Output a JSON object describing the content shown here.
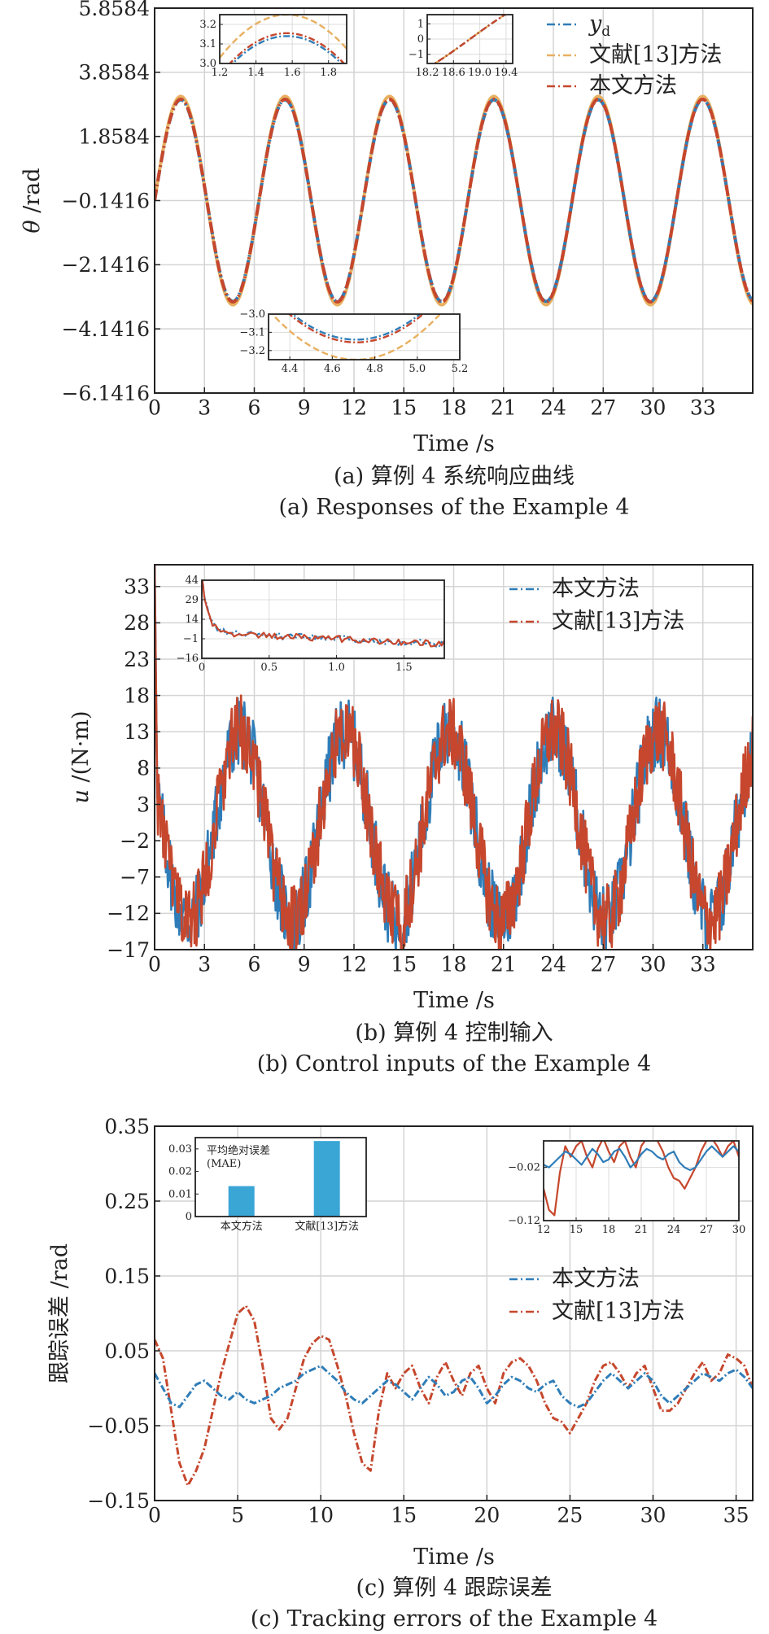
{
  "chart_data": [
    {
      "id": "a",
      "type": "line",
      "title": "",
      "xlabel": "Time /s",
      "ylabel": "θ /rad",
      "xlim": [
        0,
        36
      ],
      "ylim": [
        -6.1416,
        5.8584
      ],
      "xticks": [
        "0",
        "3",
        "6",
        "9",
        "12",
        "15",
        "18",
        "21",
        "24",
        "27",
        "30",
        "33"
      ],
      "xtick_values": [
        0,
        3,
        6,
        9,
        12,
        15,
        18,
        21,
        24,
        27,
        30,
        33
      ],
      "yticks": [
        "5.8584",
        "3.8584",
        "1.8584",
        "−0.1416",
        "−2.1416",
        "−4.1416",
        "−6.1416"
      ],
      "ytick_values": [
        5.8584,
        3.8584,
        1.8584,
        -0.1416,
        -2.1416,
        -4.1416,
        -6.1416
      ],
      "grid": true,
      "legend_position": "top-right",
      "series": [
        {
          "name": "y_d",
          "color": "#2f7db8",
          "dash": "dashdot",
          "values_note": "sine",
          "amplitude": 3.1416,
          "offset": -0.1416,
          "period": 6.2832
        },
        {
          "name": "文献[13]方法",
          "color": "#e8b060",
          "dash": "dashdot",
          "amplitude": 3.25,
          "offset": -0.1416,
          "period": 6.2832
        },
        {
          "name": "本文方法",
          "color": "#c6472d",
          "dash": "dashdot",
          "amplitude": 3.16,
          "offset": -0.1416,
          "period": 6.2832
        }
      ],
      "insets": [
        {
          "xlim": [
            1.2,
            1.9
          ],
          "ylim": [
            3.0,
            3.25
          ],
          "xticks": [
            "1.2",
            "1.4",
            "1.6",
            "1.8"
          ],
          "xtick_values": [
            1.2,
            1.4,
            1.6,
            1.8
          ],
          "yticks": [
            "3.2",
            "3.1",
            "3.0"
          ],
          "ytick_values": [
            3.2,
            3.1,
            3.0
          ]
        },
        {
          "xlim": [
            18.2,
            19.5
          ],
          "ylim": [
            -1.6,
            1.6
          ],
          "xticks": [
            "18.2",
            "18.6",
            "19.0",
            "19.4"
          ],
          "xtick_values": [
            18.2,
            18.6,
            19.0,
            19.4
          ],
          "yticks": [
            "1",
            "0",
            "−1"
          ],
          "ytick_values": [
            1,
            0,
            -1
          ]
        },
        {
          "xlim": [
            4.3,
            5.2
          ],
          "ylim": [
            -3.25,
            -3.0
          ],
          "xticks": [
            "4.4",
            "4.6",
            "4.8",
            "5.0",
            "5.2"
          ],
          "xtick_values": [
            4.4,
            4.6,
            4.8,
            5.0,
            5.2
          ],
          "yticks": [
            "−3.0",
            "−3.1",
            "−3.2"
          ],
          "ytick_values": [
            -3.0,
            -3.1,
            -3.2
          ]
        }
      ],
      "caption_zh": "(a) 算例 4 系统响应曲线",
      "caption_en": "(a) Responses of the Example 4"
    },
    {
      "id": "b",
      "type": "line",
      "title": "",
      "xlabel": "Time /s",
      "ylabel": "u /(N·m)",
      "xlim": [
        0,
        36
      ],
      "ylim": [
        -17,
        36
      ],
      "xticks": [
        "0",
        "3",
        "6",
        "9",
        "12",
        "15",
        "18",
        "21",
        "24",
        "27",
        "30",
        "33"
      ],
      "xtick_values": [
        0,
        3,
        6,
        9,
        12,
        15,
        18,
        21,
        24,
        27,
        30,
        33
      ],
      "yticks": [
        "33",
        "28",
        "23",
        "18",
        "13",
        "8",
        "3",
        "−2",
        "−7",
        "−12",
        "−17"
      ],
      "ytick_values": [
        33,
        28,
        23,
        18,
        13,
        8,
        3,
        -2,
        -7,
        -12,
        -17
      ],
      "grid": true,
      "legend_position": "top-right",
      "series": [
        {
          "name": "本文方法",
          "color": "#2f7db8",
          "dash": "dashdot",
          "mean": 0,
          "amplitude": 13,
          "period": 6.2832,
          "phase_s": 3.6,
          "noise": 5
        },
        {
          "name": "文献[13]方法",
          "color": "#c6472d",
          "dash": "dashdot",
          "mean": 0,
          "amplitude": 13,
          "period": 6.2832,
          "phase_s": 3.6,
          "noise": 5
        }
      ],
      "insets": [
        {
          "xlim": [
            0,
            1.8
          ],
          "ylim": [
            -16,
            44
          ],
          "xticks": [
            "0",
            "0.5",
            "1.0",
            "1.5"
          ],
          "xtick_values": [
            0,
            0.5,
            1.0,
            1.5
          ],
          "yticks": [
            "44",
            "29",
            "14",
            "−1",
            "−16"
          ],
          "ytick_values": [
            44,
            29,
            14,
            -1,
            -16
          ]
        }
      ],
      "caption_zh": "(b) 算例 4 控制输入",
      "caption_en": "(b) Control inputs of the Example 4"
    },
    {
      "id": "c",
      "type": "line",
      "title": "",
      "xlabel": "Time /s",
      "ylabel": "跟踪误差 /rad",
      "xlim": [
        0,
        36
      ],
      "ylim": [
        -0.15,
        0.35
      ],
      "xticks": [
        "0",
        "5",
        "10",
        "15",
        "20",
        "25",
        "30",
        "35"
      ],
      "xtick_values": [
        0,
        5,
        10,
        15,
        20,
        25,
        30,
        35
      ],
      "yticks": [
        "0.35",
        "0.25",
        "0.15",
        "0.05",
        "−0.05",
        "−0.15"
      ],
      "ytick_values": [
        0.35,
        0.25,
        0.15,
        0.05,
        -0.05,
        -0.15
      ],
      "grid": true,
      "legend_position": "center-right",
      "series": [
        {
          "name": "本文方法",
          "color": "#2f7db8",
          "dash": "dashdot",
          "x": [
            0,
            0.5,
            1,
            1.5,
            2,
            2.5,
            3,
            3.5,
            4,
            4.5,
            5,
            5.5,
            6,
            6.5,
            7,
            7.5,
            8,
            8.5,
            9,
            9.5,
            10,
            10.5,
            11,
            11.5,
            12,
            12.5,
            13,
            13.5,
            14,
            14.5,
            15,
            15.5,
            16,
            16.5,
            17,
            17.5,
            18,
            18.5,
            19,
            19.5,
            20,
            20.5,
            21,
            21.5,
            22,
            22.5,
            23,
            23.5,
            24,
            24.5,
            25,
            25.5,
            26,
            26.5,
            27,
            27.5,
            28,
            28.5,
            29,
            29.5,
            30,
            30.5,
            31,
            31.5,
            32,
            32.5,
            33,
            33.5,
            34,
            34.5,
            35,
            35.5,
            36
          ],
          "y": [
            0.02,
            0.0,
            -0.02,
            -0.025,
            -0.01,
            0.005,
            0.01,
            0.0,
            -0.01,
            -0.015,
            -0.005,
            -0.015,
            -0.02,
            -0.015,
            -0.01,
            0.0,
            0.005,
            0.01,
            0.02,
            0.025,
            0.03,
            0.02,
            0.01,
            -0.005,
            -0.015,
            -0.02,
            -0.01,
            0.0,
            0.01,
            0.005,
            -0.005,
            -0.015,
            0.0,
            0.015,
            0.005,
            -0.01,
            -0.005,
            0.01,
            0.015,
            0.0,
            -0.02,
            -0.01,
            0.005,
            0.015,
            0.01,
            0.0,
            -0.005,
            0.005,
            0.01,
            -0.01,
            -0.02,
            -0.025,
            -0.02,
            -0.005,
            0.01,
            0.02,
            0.01,
            0.0,
            0.01,
            0.02,
            0.01,
            -0.01,
            -0.02,
            -0.01,
            0.0,
            0.01,
            0.02,
            0.015,
            0.01,
            0.02,
            0.025,
            0.015,
            0.0
          ]
        },
        {
          "name": "文献[13]方法",
          "color": "#c6472d",
          "dash": "dashdot",
          "x": [
            0,
            0.5,
            1,
            1.5,
            2,
            2.5,
            3,
            3.5,
            4,
            4.5,
            5,
            5.5,
            6,
            6.5,
            7,
            7.5,
            8,
            8.5,
            9,
            9.5,
            10,
            10.5,
            11,
            11.5,
            12,
            12.5,
            13,
            13.5,
            14,
            14.5,
            15,
            15.5,
            16,
            16.5,
            17,
            17.5,
            18,
            18.5,
            19,
            19.5,
            20,
            20.5,
            21,
            21.5,
            22,
            22.5,
            23,
            23.5,
            24,
            24.5,
            25,
            25.5,
            26,
            26.5,
            27,
            27.5,
            28,
            28.5,
            29,
            29.5,
            30,
            30.5,
            31,
            31.5,
            32,
            32.5,
            33,
            33.5,
            34,
            34.5,
            35,
            35.5,
            36
          ],
          "y": [
            0.065,
            0.04,
            -0.03,
            -0.1,
            -0.13,
            -0.11,
            -0.08,
            -0.03,
            0.02,
            0.06,
            0.1,
            0.11,
            0.09,
            0.03,
            -0.04,
            -0.055,
            -0.04,
            0.0,
            0.04,
            0.06,
            0.07,
            0.065,
            0.03,
            -0.01,
            -0.06,
            -0.1,
            -0.11,
            -0.03,
            0.02,
            0.0,
            0.02,
            0.03,
            0.0,
            -0.02,
            0.015,
            0.035,
            0.01,
            -0.01,
            0.02,
            0.03,
            0.0,
            -0.02,
            0.02,
            0.035,
            0.04,
            0.03,
            0.01,
            -0.02,
            -0.04,
            -0.045,
            -0.06,
            -0.04,
            -0.02,
            0.01,
            0.03,
            0.035,
            0.02,
            0.0,
            0.02,
            0.03,
            0.0,
            -0.03,
            -0.03,
            -0.02,
            0.0,
            0.02,
            0.035,
            0.01,
            0.02,
            0.045,
            0.04,
            0.03,
            0.0
          ]
        }
      ],
      "bar_inset": {
        "title": "平均绝对误差",
        "subtitle": "(MAE)",
        "categories": [
          "本文方法",
          "文献[13]方法"
        ],
        "values": [
          0.0135,
          0.0335
        ],
        "ylim": [
          0,
          0.035
        ],
        "yticks": [
          "0.03",
          "0.02",
          "0.01",
          "0"
        ],
        "ytick_values": [
          0.03,
          0.02,
          0.01,
          0
        ],
        "color": "#3aa6d6"
      },
      "line_inset": {
        "xlim": [
          12,
          30
        ],
        "ylim": [
          -0.12,
          0.03
        ],
        "xticks": [
          "12",
          "15",
          "18",
          "21",
          "24",
          "27",
          "30"
        ],
        "xtick_values": [
          12,
          15,
          18,
          21,
          24,
          27,
          30
        ],
        "yticks": [
          "−0.02",
          "−0.12"
        ],
        "ytick_values": [
          -0.02,
          -0.12
        ]
      },
      "caption_zh": "(c) 算例 4 跟踪误差",
      "caption_en": "(c) Tracking errors of the Example 4"
    }
  ]
}
